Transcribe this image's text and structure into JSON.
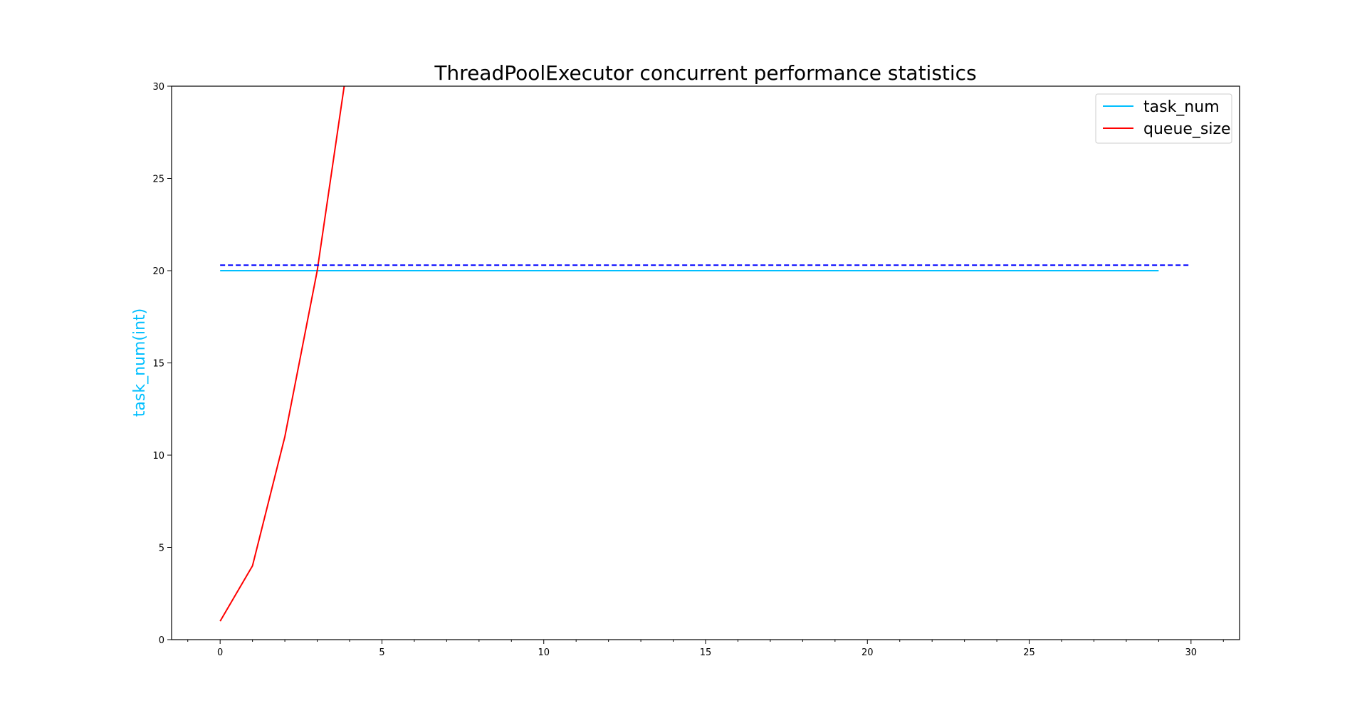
{
  "chart_data": {
    "type": "line",
    "title": "ThreadPoolExecutor concurrent performance statistics",
    "xlabel": "",
    "ylabel": "task_num(int)",
    "xlim": [
      -1.5,
      31.5
    ],
    "ylim": [
      0,
      30
    ],
    "xticks": [
      0,
      5,
      10,
      15,
      20,
      25,
      30
    ],
    "xticks_minor": [
      -1,
      1,
      2,
      3,
      4,
      6,
      7,
      8,
      9,
      11,
      12,
      13,
      14,
      16,
      17,
      18,
      19,
      21,
      22,
      23,
      24,
      26,
      27,
      28,
      29,
      31
    ],
    "yticks": [
      0,
      5,
      10,
      15,
      20,
      25,
      30
    ],
    "grid": false,
    "legend_position": "top-right",
    "series": [
      {
        "name": "task_num",
        "color": "#00bfff",
        "style": "solid",
        "x": [
          0,
          29
        ],
        "y": [
          20,
          20
        ]
      },
      {
        "name": "queue_size",
        "color": "#ff0000",
        "style": "solid",
        "x": [
          0,
          1,
          2,
          3,
          4
        ],
        "y": [
          1,
          4,
          11,
          20,
          32
        ]
      },
      {
        "color": "#0000ff",
        "style": "dashed",
        "x": [
          0,
          30
        ],
        "y": [
          20.3,
          20.3
        ]
      }
    ]
  }
}
